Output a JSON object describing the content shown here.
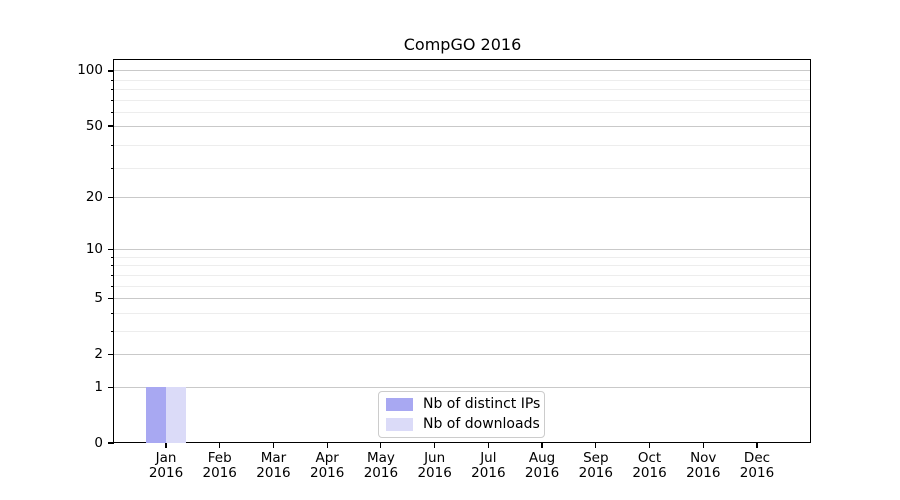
{
  "chart_data": {
    "type": "bar",
    "title": "CompGO 2016",
    "xlabel": "",
    "ylabel": "",
    "year_label": "2016",
    "categories": [
      "Jan 2016",
      "Feb 2016",
      "Mar 2016",
      "Apr 2016",
      "May 2016",
      "Jun 2016",
      "Jul 2016",
      "Aug 2016",
      "Sep 2016",
      "Oct 2016",
      "Nov 2016",
      "Dec 2016"
    ],
    "months": [
      "Jan",
      "Feb",
      "Mar",
      "Apr",
      "May",
      "Jun",
      "Jul",
      "Aug",
      "Sep",
      "Oct",
      "Nov",
      "Dec"
    ],
    "series": [
      {
        "name": "Nb of distinct IPs",
        "color": "#a8a8f2",
        "values": [
          1,
          0,
          0,
          0,
          0,
          0,
          0,
          0,
          0,
          0,
          0,
          0
        ]
      },
      {
        "name": "Nb of downloads",
        "color": "#dbdbf8",
        "values": [
          1,
          0,
          0,
          0,
          0,
          0,
          0,
          0,
          0,
          0,
          0,
          0
        ]
      }
    ],
    "y_axis": {
      "scale": "log(1+y)",
      "major_ticks": [
        0,
        1,
        2,
        5,
        10,
        20,
        50,
        100
      ],
      "minor_ticks": [
        3,
        4,
        6,
        7,
        8,
        9,
        29,
        39,
        59,
        69,
        79,
        89
      ],
      "ylim": [
        0,
        116
      ]
    },
    "grid": {
      "enabled": true,
      "major_color": "#c9c9c9",
      "minor_color": "#ededed"
    },
    "legend": {
      "position": "lower center",
      "entries": [
        "Nb of distinct IPs",
        "Nb of downloads"
      ]
    },
    "colors": {
      "background": "#ffffff",
      "spine": "#000000",
      "text": "#000000"
    }
  }
}
